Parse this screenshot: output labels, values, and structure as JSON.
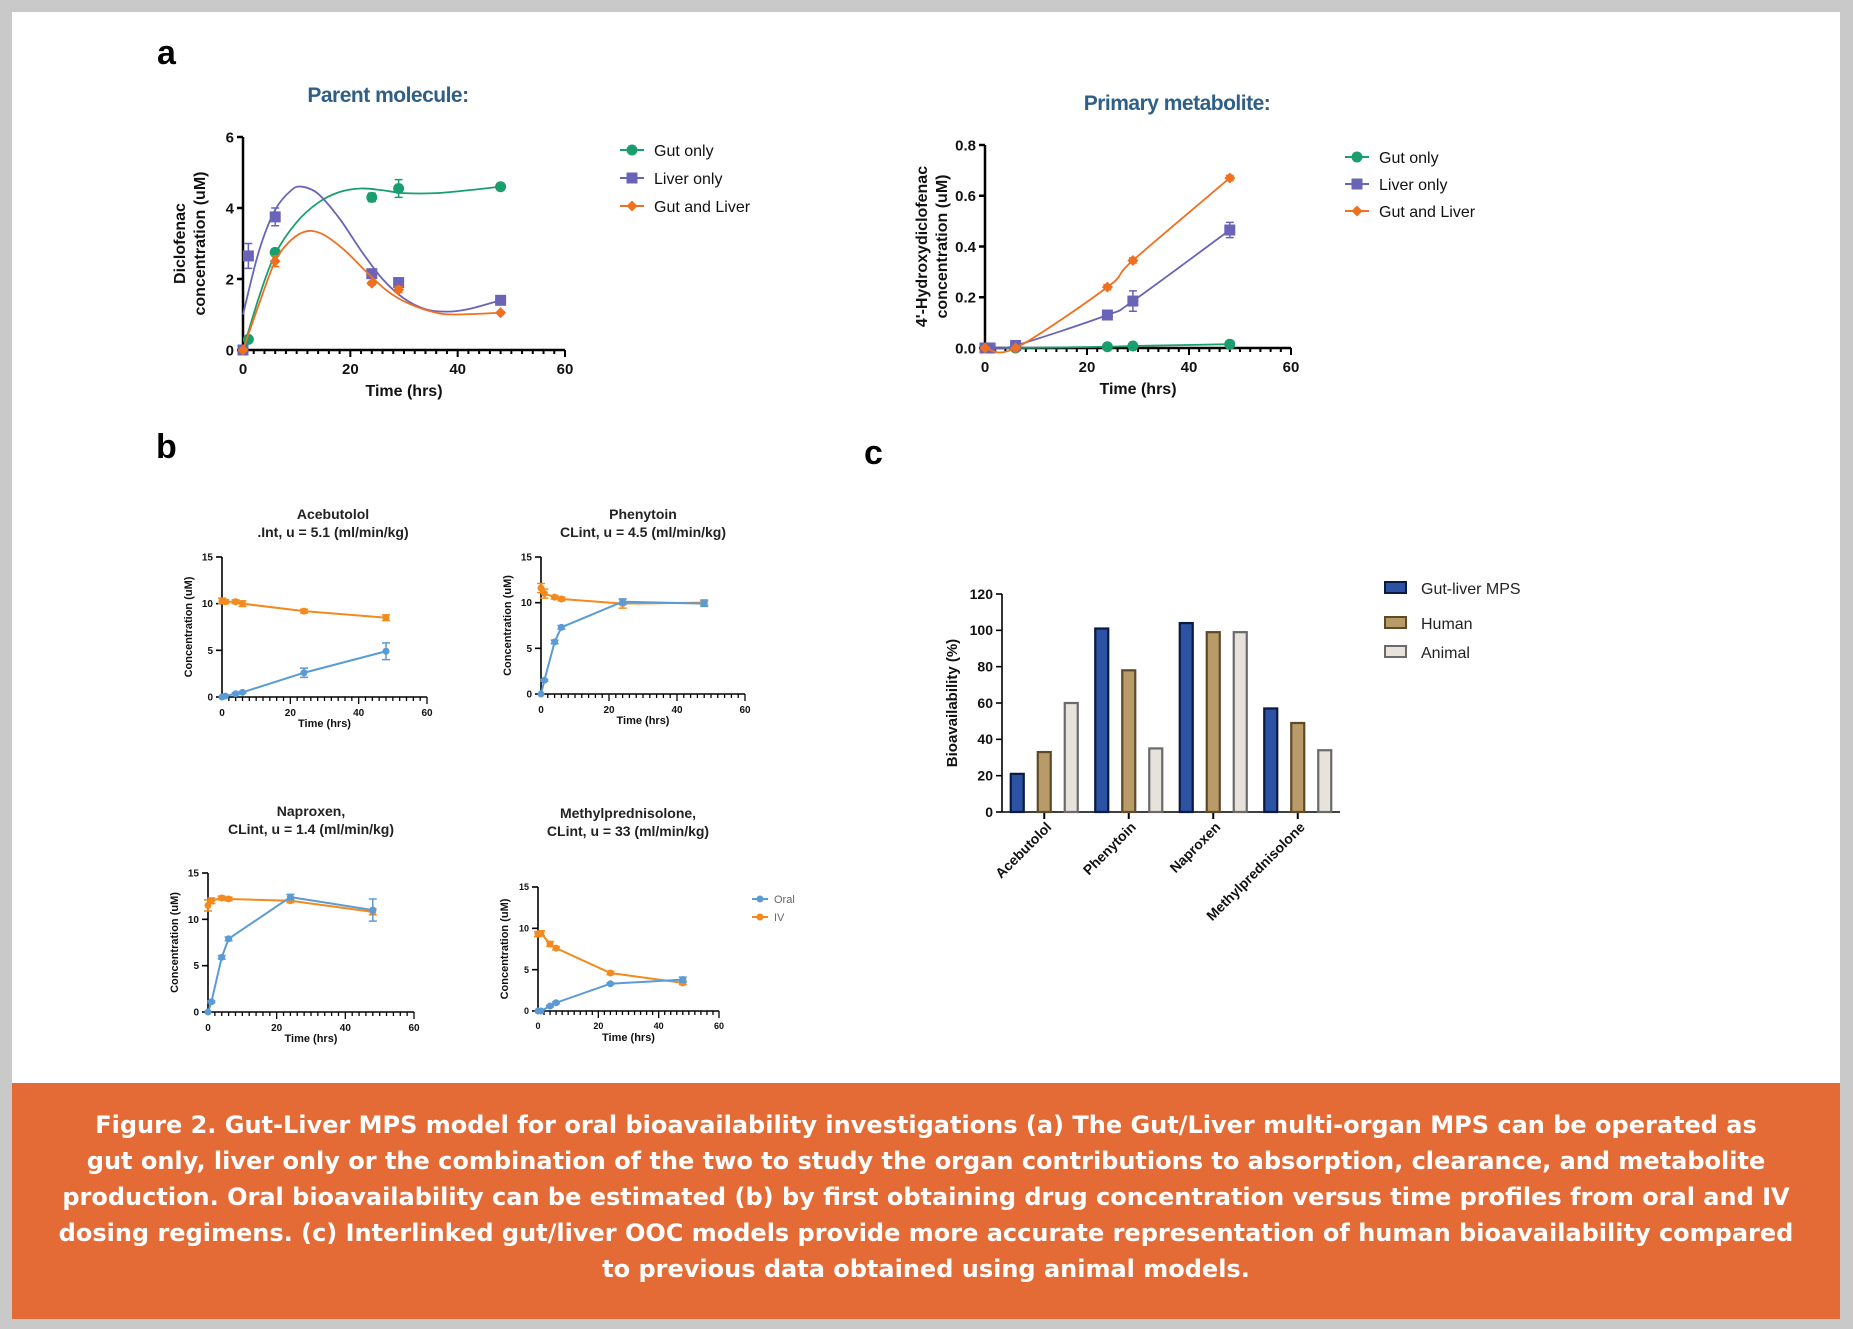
{
  "panel_labels": {
    "a": "a",
    "b": "b",
    "c": "c"
  },
  "colors": {
    "gut_only": "#1a9e6e",
    "liver_only": "#6a64b8",
    "gut_and_liver": "#f07020",
    "oral": "#5b9bd5",
    "iv": "#f28a1e",
    "caption_bg": "#e46b35",
    "title_blue": "#2f5f86"
  },
  "chart_data": [
    {
      "id": "a1",
      "type": "line",
      "title": "Parent molecule:",
      "xlabel": "Time (hrs)",
      "ylabel": [
        "Diclofenac",
        "concentration (uM)"
      ],
      "xlim": [
        0,
        60
      ],
      "ylim": [
        0,
        6
      ],
      "xticks": [
        0,
        20,
        40,
        60
      ],
      "yticks": [
        0,
        2,
        4,
        6
      ],
      "grid": false,
      "legend": "right",
      "series": [
        {
          "name": "Gut only",
          "marker": "circle",
          "color": "#1a9e6e",
          "points": [
            [
              0,
              0
            ],
            [
              1,
              0.3
            ],
            [
              6,
              2.75
            ],
            [
              24,
              4.3
            ],
            [
              29,
              4.55
            ],
            [
              48,
              4.6
            ]
          ],
          "errors": [
            0,
            0.05,
            0.1,
            0.12,
            0.25,
            0.05
          ],
          "fit": [
            [
              0,
              0
            ],
            [
              3,
              1.5
            ],
            [
              6,
              2.7
            ],
            [
              10,
              3.6
            ],
            [
              14,
              4.15
            ],
            [
              18,
              4.45
            ],
            [
              22,
              4.55
            ],
            [
              26,
              4.5
            ],
            [
              30,
              4.42
            ],
            [
              36,
              4.42
            ],
            [
              42,
              4.5
            ],
            [
              48,
              4.6
            ]
          ]
        },
        {
          "name": "Liver only",
          "marker": "square",
          "color": "#6a64b8",
          "points": [
            [
              0,
              0
            ],
            [
              1,
              2.65
            ],
            [
              6,
              3.75
            ],
            [
              24,
              2.15
            ],
            [
              29,
              1.9
            ],
            [
              48,
              1.4
            ]
          ],
          "errors": [
            0,
            0.35,
            0.25,
            0.1,
            0.1,
            0.08
          ],
          "fit": [
            [
              0,
              1.0
            ],
            [
              3,
              2.8
            ],
            [
              6,
              3.95
            ],
            [
              9,
              4.5
            ],
            [
              11,
              4.6
            ],
            [
              14,
              4.4
            ],
            [
              18,
              3.7
            ],
            [
              22,
              2.8
            ],
            [
              26,
              2.0
            ],
            [
              30,
              1.45
            ],
            [
              34,
              1.15
            ],
            [
              38,
              1.08
            ],
            [
              42,
              1.15
            ],
            [
              48,
              1.4
            ]
          ]
        },
        {
          "name": "Gut and Liver",
          "marker": "diamond",
          "color": "#f07020",
          "points": [
            [
              0,
              0
            ],
            [
              6,
              2.5
            ],
            [
              24,
              1.88
            ],
            [
              29,
              1.7
            ],
            [
              48,
              1.05
            ]
          ],
          "errors": [
            0,
            0.15,
            0.05,
            0.08,
            0.03
          ],
          "fit": [
            [
              0,
              0
            ],
            [
              3,
              1.3
            ],
            [
              6,
              2.5
            ],
            [
              9,
              3.1
            ],
            [
              12,
              3.35
            ],
            [
              15,
              3.25
            ],
            [
              19,
              2.8
            ],
            [
              23,
              2.2
            ],
            [
              27,
              1.65
            ],
            [
              31,
              1.3
            ],
            [
              36,
              1.05
            ],
            [
              40,
              1.0
            ],
            [
              48,
              1.05
            ]
          ]
        }
      ]
    },
    {
      "id": "a2",
      "type": "line",
      "title": "Primary metabolite:",
      "xlabel": "Time (hrs)",
      "ylabel": [
        "4'-Hydroxydiclofenac",
        "concentration (uM)"
      ],
      "xlim": [
        0,
        60
      ],
      "ylim": [
        0,
        0.8
      ],
      "xticks": [
        0,
        20,
        40,
        60
      ],
      "yticks": [
        0.0,
        0.2,
        0.4,
        0.6,
        0.8
      ],
      "ytick_labels": [
        "0.0",
        "0.2",
        "0.4",
        "0.6",
        "0.8"
      ],
      "grid": false,
      "legend": "right",
      "series": [
        {
          "name": "Gut only",
          "marker": "circle",
          "color": "#1a9e6e",
          "points": [
            [
              0,
              0
            ],
            [
              1,
              0
            ],
            [
              6,
              0
            ],
            [
              24,
              0.005
            ],
            [
              29,
              0.008
            ],
            [
              48,
              0.015
            ]
          ],
          "errors": [
            0,
            0,
            0,
            0,
            0,
            0.005
          ]
        },
        {
          "name": "Liver only",
          "marker": "square",
          "color": "#6a64b8",
          "points": [
            [
              0,
              0
            ],
            [
              1,
              0
            ],
            [
              6,
              0.01
            ],
            [
              24,
              0.13
            ],
            [
              29,
              0.185
            ],
            [
              48,
              0.465
            ]
          ],
          "errors": [
            0,
            0,
            0,
            0.01,
            0.04,
            0.03
          ]
        },
        {
          "name": "Gut and Liver",
          "marker": "diamond",
          "color": "#f07020",
          "points": [
            [
              0,
              0
            ],
            [
              6,
              0
            ],
            [
              24,
              0.24
            ],
            [
              29,
              0.345
            ],
            [
              48,
              0.67
            ]
          ],
          "errors": [
            0,
            0,
            0.01,
            0.01,
            0.01
          ]
        }
      ]
    },
    {
      "id": "b1",
      "type": "line",
      "title": [
        "Acebutolol",
        ".Int, u = 5.1 (ml/min/kg)"
      ],
      "xlabel": "Time (hrs)",
      "ylabel": "Concentration (uM)",
      "xlim": [
        0,
        60
      ],
      "ylim": [
        0,
        15
      ],
      "xticks": [
        0,
        20,
        40,
        60
      ],
      "yticks": [
        0,
        5,
        10,
        15
      ],
      "series": [
        {
          "name": "IV",
          "color": "#f28a1e",
          "points": [
            [
              0,
              10.3
            ],
            [
              1,
              10.2
            ],
            [
              4,
              10.2
            ],
            [
              6,
              10
            ],
            [
              24,
              9.2
            ],
            [
              48,
              8.5
            ]
          ],
          "errors": [
            0.3,
            0.2,
            0.2,
            0.3,
            0.2,
            0.3
          ]
        },
        {
          "name": "Oral",
          "color": "#5b9bd5",
          "points": [
            [
              0,
              0
            ],
            [
              1,
              0.1
            ],
            [
              4,
              0.35
            ],
            [
              6,
              0.5
            ],
            [
              24,
              2.6
            ],
            [
              48,
              4.9
            ]
          ],
          "errors": [
            0,
            0,
            0.1,
            0.1,
            0.5,
            0.9
          ]
        }
      ]
    },
    {
      "id": "b2",
      "type": "line",
      "title": [
        "Phenytoin",
        "CLint, u = 4.5 (ml/min/kg)"
      ],
      "xlabel": "Time (hrs)",
      "ylabel": "Concentration (uM)",
      "xlim": [
        0,
        60
      ],
      "ylim": [
        0,
        15
      ],
      "xticks": [
        0,
        20,
        40,
        60
      ],
      "yticks": [
        0,
        5,
        10,
        15
      ],
      "series": [
        {
          "name": "IV",
          "color": "#f28a1e",
          "points": [
            [
              0,
              11.6
            ],
            [
              1,
              11
            ],
            [
              4,
              10.6
            ],
            [
              6,
              10.4
            ],
            [
              24,
              9.9
            ],
            [
              48,
              10.0
            ]
          ],
          "errors": [
            0.5,
            0.5,
            0.2,
            0.2,
            0.5,
            0.3
          ]
        },
        {
          "name": "Oral",
          "color": "#5b9bd5",
          "points": [
            [
              0,
              0
            ],
            [
              1,
              1.5
            ],
            [
              4,
              5.7
            ],
            [
              6,
              7.3
            ],
            [
              24,
              10.1
            ],
            [
              48,
              9.9
            ]
          ],
          "errors": [
            0,
            0.1,
            0.2,
            0.2,
            0.3,
            0.3
          ]
        }
      ]
    },
    {
      "id": "b3",
      "type": "line",
      "title": [
        "Naproxen,",
        "CLint, u = 1.4 (ml/min/kg)"
      ],
      "xlabel": "Time (hrs)",
      "ylabel": "Concentration (uM)",
      "xlim": [
        0,
        60
      ],
      "ylim": [
        0,
        15
      ],
      "xticks": [
        0,
        20,
        40,
        60
      ],
      "yticks": [
        0,
        5,
        10,
        15
      ],
      "series": [
        {
          "name": "IV",
          "color": "#f28a1e",
          "points": [
            [
              0,
              11.5
            ],
            [
              1,
              12
            ],
            [
              4,
              12.3
            ],
            [
              6,
              12.2
            ],
            [
              24,
              12
            ],
            [
              48,
              10.8
            ]
          ],
          "errors": [
            0.6,
            0.3,
            0.2,
            0.2,
            0.2,
            0.3
          ]
        },
        {
          "name": "Oral",
          "color": "#5b9bd5",
          "points": [
            [
              0,
              0
            ],
            [
              1,
              1.1
            ],
            [
              4,
              5.9
            ],
            [
              6,
              7.9
            ],
            [
              24,
              12.4
            ],
            [
              48,
              11
            ]
          ],
          "errors": [
            0,
            0.1,
            0.2,
            0.2,
            0.3,
            1.2
          ]
        }
      ]
    },
    {
      "id": "b4",
      "type": "line",
      "title": [
        "Methylprednisolone,",
        "CLint, u = 33 (ml/min/kg)"
      ],
      "xlabel": "Time (hrs)",
      "ylabel": "Concentration (uM)",
      "xlim": [
        0,
        60
      ],
      "ylim": [
        0,
        15
      ],
      "xticks": [
        0,
        20,
        40,
        60
      ],
      "yticks": [
        0,
        5,
        10,
        15
      ],
      "legend": "right",
      "series": [
        {
          "name": "IV",
          "color": "#f28a1e",
          "points": [
            [
              0,
              9.3
            ],
            [
              1,
              9.4
            ],
            [
              4,
              8.1
            ],
            [
              6,
              7.6
            ],
            [
              24,
              4.6
            ],
            [
              48,
              3.4
            ]
          ],
          "errors": [
            0.3,
            0.3,
            0.3,
            0.2,
            0.2,
            0.2
          ]
        },
        {
          "name": "Oral",
          "color": "#5b9bd5",
          "points": [
            [
              0,
              0
            ],
            [
              1,
              0
            ],
            [
              4,
              0.6
            ],
            [
              6,
              1
            ],
            [
              24,
              3.3
            ],
            [
              48,
              3.8
            ]
          ],
          "errors": [
            0,
            0,
            0.1,
            0.1,
            0.1,
            0.3
          ]
        }
      ],
      "legend_entries": [
        "Oral",
        "IV"
      ]
    },
    {
      "id": "c",
      "type": "bar",
      "title": "",
      "xlabel": "",
      "ylabel": "Bioavailability (%)",
      "ylim": [
        0,
        120
      ],
      "yticks": [
        0,
        20,
        40,
        60,
        80,
        100,
        120
      ],
      "grid": false,
      "legend": "right",
      "categories": [
        "Acebutolol",
        "Phenytoin",
        "Naproxen",
        "Methylprednisolone"
      ],
      "series": [
        {
          "name": "Gut-liver MPS",
          "color": "#2b52a3",
          "edge": "#0b1a40",
          "values": [
            21,
            101,
            104,
            57
          ]
        },
        {
          "name": "Human",
          "color": "#b99b69",
          "edge": "#5e4a28",
          "values": [
            33,
            78,
            99,
            49
          ]
        },
        {
          "name": "Animal",
          "color": "#e7e3dc",
          "edge": "#6a6a6a",
          "values": [
            60,
            35,
            99,
            34
          ]
        }
      ]
    }
  ],
  "caption": {
    "lines": [
      "Figure 2. Gut-Liver MPS model for oral bioavailability investigations (a) The Gut/Liver multi-organ MPS can be operated as",
      "gut only, liver only or the combination of the two to study the organ contributions to absorption, clearance, and metabolite",
      "production. Oral bioavailability can be estimated (b) by first obtaining drug concentration versus time profiles from oral and IV",
      "dosing regimens. (c) Interlinked gut/liver OOC models provide more accurate representation of human bioavailability compared",
      "to previous data obtained using animal models."
    ]
  }
}
